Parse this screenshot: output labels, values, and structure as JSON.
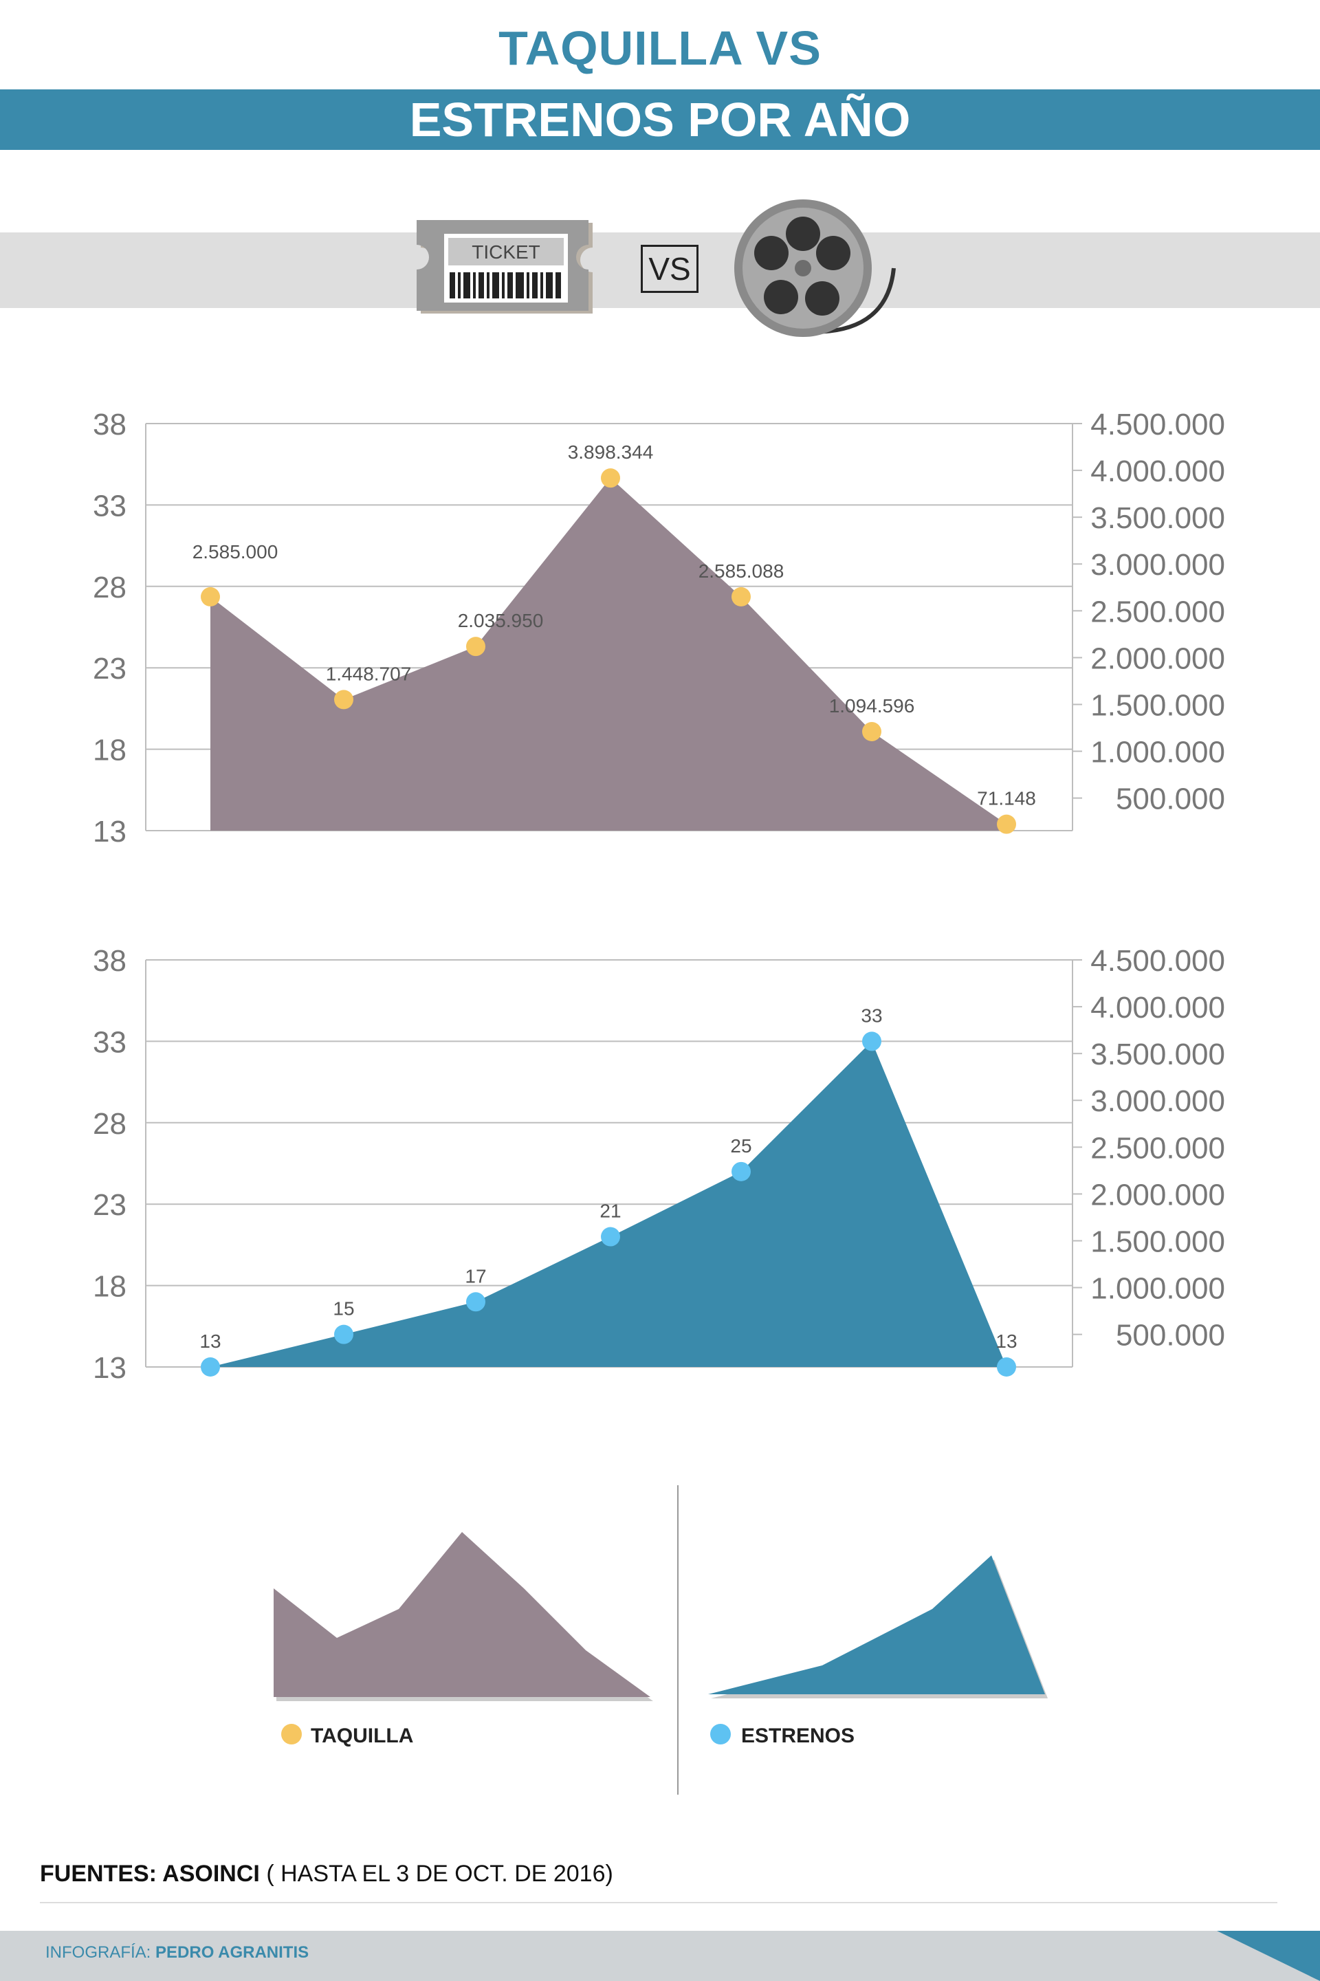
{
  "header": {
    "title_line1": "TAQUILLA VS",
    "title_line2": "ESTRENOS POR AÑO",
    "ticket_label": "TICKET",
    "vs_label": "VS"
  },
  "colors": {
    "accent": "#3a8aab",
    "taquilla_area": "#968690",
    "taquilla_marker": "#f6c660",
    "estrenos_area": "#3a8aab",
    "estrenos_marker": "#5ec2f2"
  },
  "chart_data": [
    {
      "type": "area",
      "left_axis_ticks": [
        "38",
        "33",
        "28",
        "23",
        "18",
        "13"
      ],
      "right_axis_ticks": [
        "4.500.000",
        "4.000.000",
        "3.500.000",
        "3.000.000",
        "2.500.000",
        "2.000.000",
        "1.500.000",
        "1.000.000",
        "500.000"
      ],
      "ylim": [
        0,
        4500000
      ],
      "grid": true,
      "series": [
        {
          "values": [
            2585000,
            1448707,
            2035950,
            3898344,
            2585088,
            1094596,
            71148
          ],
          "labels": [
            "2.585.000",
            "1.448.707",
            "2.035.950",
            "3.898.344",
            "2.585.088",
            "1.094.596",
            "71.148"
          ]
        }
      ]
    },
    {
      "type": "area",
      "left_axis_ticks": [
        "38",
        "33",
        "28",
        "23",
        "18",
        "13"
      ],
      "right_axis_ticks": [
        "4.500.000",
        "4.000.000",
        "3.500.000",
        "3.000.000",
        "2.500.000",
        "2.000.000",
        "1.500.000",
        "1.000.000",
        "500.000"
      ],
      "ylim": [
        13,
        38
      ],
      "grid": true,
      "series": [
        {
          "values": [
            13,
            15,
            17,
            21,
            25,
            33,
            13
          ],
          "labels": [
            "13",
            "15",
            "17",
            "21",
            "25",
            "33",
            "13"
          ]
        }
      ]
    }
  ],
  "legend": {
    "items": [
      {
        "label": "TAQUILLA",
        "color": "#f6c660"
      },
      {
        "label": "ESTRENOS",
        "color": "#5ec2f2"
      }
    ]
  },
  "sources": {
    "label": "FUENTES: ASOINCI",
    "detail": " ( HASTA EL 3 DE OCT. DE 2016)"
  },
  "footer": {
    "prefix": "INFOGRAFÍA: ",
    "author": "PEDRO AGRANITIS"
  }
}
